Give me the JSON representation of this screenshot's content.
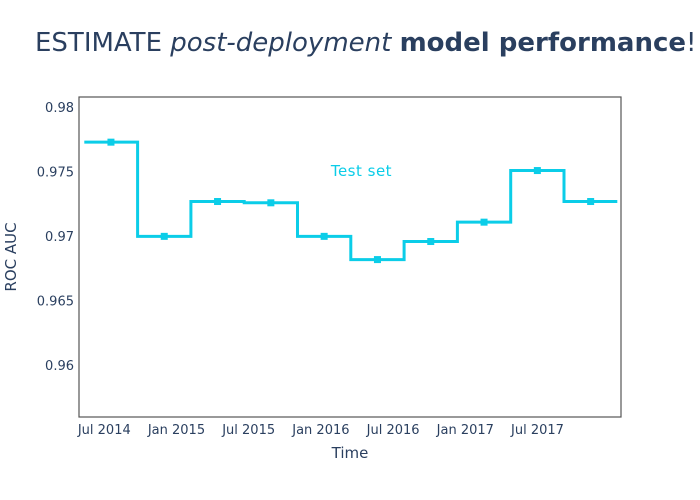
{
  "title": {
    "full_text": "ESTIMATE post-deployment model performance!",
    "parts": [
      {
        "text": "ESTIMATE ",
        "style": "regular"
      },
      {
        "text": "post-deployment",
        "style": "italic"
      },
      {
        "text": " ",
        "style": "regular"
      },
      {
        "text": "model performance",
        "style": "bold"
      },
      {
        "text": "!",
        "style": "regular"
      }
    ],
    "color": "#2a3f5f"
  },
  "chart_data": {
    "type": "line",
    "line_shape": "hv",
    "title": "ESTIMATE post-deployment model performance!",
    "xlabel": "Time",
    "ylabel": "ROC AUC",
    "grid": false,
    "legend_position": "in-plot annotation",
    "chunk_count": 10,
    "series": [
      {
        "name": "Test set",
        "color": "#0bcde8",
        "marker": "square",
        "values": [
          0.9773,
          0.97,
          0.9727,
          0.9726,
          0.97,
          0.9682,
          0.9696,
          0.9711,
          0.9751,
          0.9727
        ]
      }
    ],
    "x_ticks": [
      {
        "label": "Jul 2014",
        "pos": 0.375
      },
      {
        "label": "Jan 2015",
        "pos": 1.7296
      },
      {
        "label": "Jul 2015",
        "pos": 3.0842
      },
      {
        "label": "Jan 2016",
        "pos": 4.4388
      },
      {
        "label": "Jul 2016",
        "pos": 5.7934
      },
      {
        "label": "Jan 2017",
        "pos": 7.148
      },
      {
        "label": "Jul 2017",
        "pos": 8.5026
      }
    ],
    "y_ticks": [
      {
        "value": 0.96,
        "label": "0.96"
      },
      {
        "value": 0.965,
        "label": "0.965"
      },
      {
        "value": 0.97,
        "label": "0.97"
      },
      {
        "value": 0.975,
        "label": "0.975"
      },
      {
        "value": 0.98,
        "label": "0.98"
      }
    ],
    "x_range": [
      -0.0994,
      10.0694
    ],
    "y_range": [
      0.956,
      0.9808
    ],
    "annotation": {
      "text": "Test set",
      "x": 5.2,
      "y": 0.97505,
      "color": "#0bcde8"
    }
  },
  "axes": {
    "x_title": "Time",
    "y_title": "ROC AUC",
    "tick_color": "#2a3f5f",
    "border_color": "#555555"
  },
  "colors": {
    "background": "#ffffff",
    "accent_line": "#0bcde8",
    "text": "#2a3f5f"
  }
}
